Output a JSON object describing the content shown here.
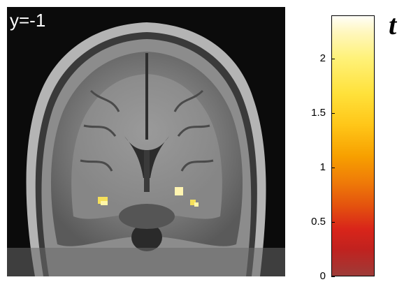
{
  "figure": {
    "slice_label": "y=-1",
    "colorbar": {
      "title": "t",
      "ticks": [
        "2",
        "1.5",
        "1",
        "0.5",
        "0"
      ],
      "min": 0,
      "max": 2.4,
      "colors": {
        "top": "#fffef8",
        "mid": "#f7a000",
        "low": "#d9251a",
        "bottom": "#9e3b38"
      }
    },
    "activation_color": "#f5e05a"
  }
}
